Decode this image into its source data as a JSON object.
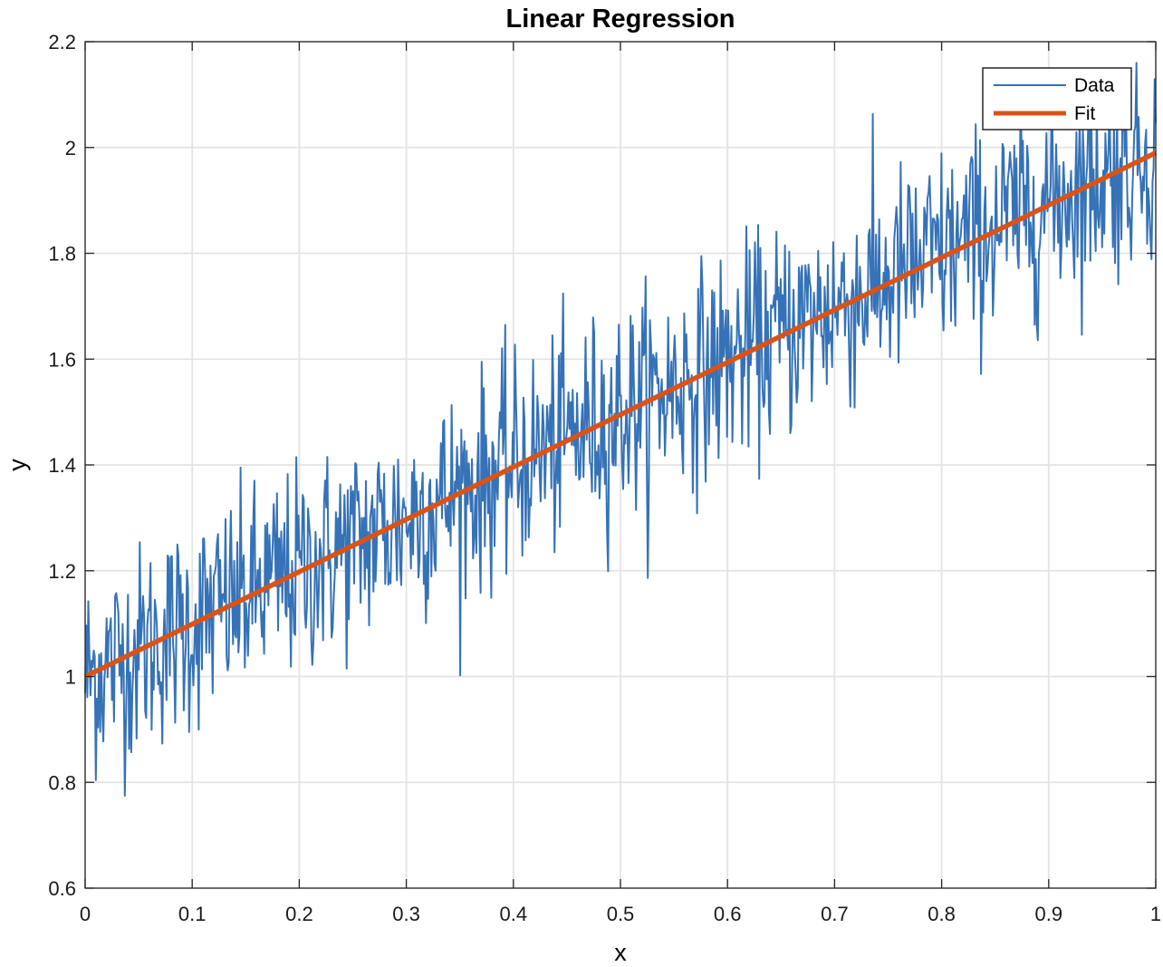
{
  "chart_data": {
    "type": "line",
    "title": "Linear Regression",
    "xlabel": "x",
    "ylabel": "y",
    "xlim": [
      0,
      1
    ],
    "ylim": [
      0.6,
      2.2
    ],
    "xticks": [
      0,
      0.1,
      0.2,
      0.3,
      0.4,
      0.5,
      0.6,
      0.7,
      0.8,
      0.9,
      1
    ],
    "xtick_labels": [
      "0",
      "0.1",
      "0.2",
      "0.3",
      "0.4",
      "0.5",
      "0.6",
      "0.7",
      "0.8",
      "0.9",
      "1"
    ],
    "yticks": [
      0.6,
      0.8,
      1,
      1.2,
      1.4,
      1.6,
      1.8,
      2,
      2.2
    ],
    "ytick_labels": [
      "0.6",
      "0.8",
      "1",
      "1.2",
      "1.4",
      "1.6",
      "1.8",
      "2",
      "2.2"
    ],
    "grid": true,
    "legend_position": "top-right",
    "series": [
      {
        "name": "Data",
        "color": "#3572b7",
        "kind": "noisy-line",
        "n_points": 1000,
        "x_range": [
          0,
          1
        ],
        "trend_intercept": 1.0,
        "trend_slope": 1.0,
        "noise_sd": 0.1,
        "approx_min": 0.77,
        "approx_max": 2.16
      },
      {
        "name": "Fit",
        "color": "#d95319",
        "kind": "line",
        "x": [
          0,
          1
        ],
        "y": [
          1.0,
          1.99
        ]
      }
    ]
  }
}
